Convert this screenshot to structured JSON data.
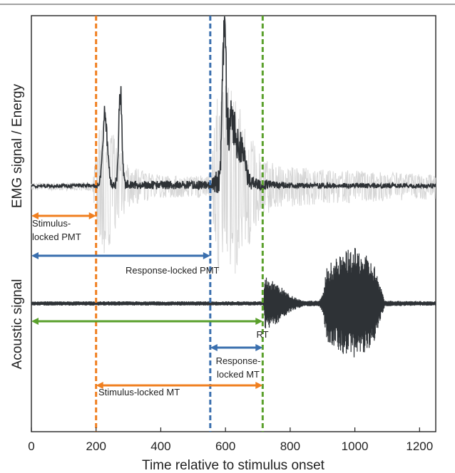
{
  "chart_data": {
    "type": "line",
    "xlabel": "Time relative to stimulus onset",
    "xlim": [
      0,
      1250
    ],
    "xticks": [
      0,
      200,
      400,
      600,
      800,
      1000,
      1200
    ],
    "panels": [
      {
        "name": "emg",
        "ylabel": "EMG signal / Energy"
      },
      {
        "name": "acoustic",
        "ylabel": "Acoustic signal"
      }
    ],
    "markers": [
      {
        "name": "stimulus_onset",
        "x": 200,
        "color": "#f07f1f"
      },
      {
        "name": "emg_onset",
        "x": 553,
        "color": "#3a6fae"
      },
      {
        "name": "response_onset",
        "x": 715,
        "color": "#5aa02c"
      }
    ],
    "series": [
      {
        "role": "emg_raw",
        "color": "#d6d6d6",
        "envelope": [
          [
            0,
            5
          ],
          [
            190,
            6
          ],
          [
            205,
            90
          ],
          [
            225,
            95
          ],
          [
            270,
            60
          ],
          [
            300,
            30
          ],
          [
            360,
            20
          ],
          [
            420,
            16
          ],
          [
            500,
            14
          ],
          [
            553,
            20
          ],
          [
            575,
            140
          ],
          [
            600,
            150
          ],
          [
            640,
            120
          ],
          [
            700,
            50
          ],
          [
            760,
            30
          ],
          [
            900,
            25
          ],
          [
            1100,
            20
          ],
          [
            1250,
            18
          ]
        ]
      },
      {
        "role": "emg_energy",
        "color": "#2e3236",
        "peaks": [
          [
            228,
            110,
            10
          ],
          [
            275,
            145,
            7
          ],
          [
            596,
            235,
            8
          ],
          [
            620,
            90,
            18
          ],
          [
            650,
            50,
            15
          ]
        ],
        "envelope": [
          [
            0,
            2
          ],
          [
            200,
            3
          ],
          [
            230,
            10
          ],
          [
            300,
            6
          ],
          [
            553,
            6
          ],
          [
            600,
            30
          ],
          [
            700,
            8
          ],
          [
            800,
            4
          ],
          [
            1250,
            3
          ]
        ]
      },
      {
        "role": "acoustic",
        "color": "#2e3236",
        "envelope": [
          [
            0,
            3
          ],
          [
            715,
            3
          ],
          [
            718,
            6
          ],
          [
            722,
            38
          ],
          [
            760,
            28
          ],
          [
            800,
            12
          ],
          [
            840,
            4
          ],
          [
            890,
            4
          ],
          [
            900,
            12
          ],
          [
            915,
            55
          ],
          [
            940,
            62
          ],
          [
            975,
            75
          ],
          [
            1000,
            78
          ],
          [
            1030,
            70
          ],
          [
            1060,
            55
          ],
          [
            1082,
            20
          ],
          [
            1092,
            4
          ],
          [
            1250,
            3
          ]
        ]
      }
    ],
    "annotations": [
      {
        "label": "Stimulus-\nlocked PMT",
        "from": 0,
        "to": 200,
        "color": "#f07f1f"
      },
      {
        "label": "Response-locked PMT",
        "from": 0,
        "to": 553,
        "color": "#3a6fae"
      },
      {
        "label": "RT",
        "from": 0,
        "to": 715,
        "color": "#5aa02c"
      },
      {
        "label": "Response-\nlocked MT",
        "from": 553,
        "to": 715,
        "color": "#3a6fae"
      },
      {
        "label": "Stimulus-locked MT",
        "from": 200,
        "to": 715,
        "color": "#f07f1f"
      }
    ]
  }
}
